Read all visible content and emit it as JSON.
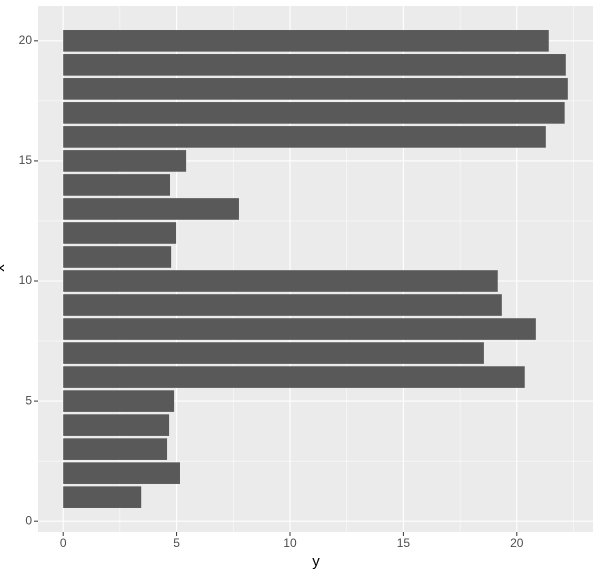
{
  "chart_data": {
    "type": "bar",
    "orientation": "horizontal",
    "x_label": "x",
    "y_label": "y",
    "x": [
      1,
      2,
      3,
      4,
      5,
      6,
      7,
      8,
      9,
      10,
      11,
      12,
      13,
      14,
      15,
      16,
      17,
      18,
      19,
      20
    ],
    "values": [
      3.44,
      5.15,
      4.58,
      4.67,
      4.89,
      20.35,
      18.55,
      20.84,
      19.34,
      19.16,
      4.76,
      4.98,
      7.75,
      4.71,
      5.42,
      21.28,
      22.11,
      22.25,
      22.16,
      21.41
    ],
    "color": "#595959",
    "xlim": [
      -0.45,
      21.45
    ],
    "xticks": [
      0,
      5,
      10,
      15,
      20
    ],
    "ylim": [
      -1.11,
      23.36
    ],
    "yticks": [
      0,
      5,
      10,
      15,
      20
    ],
    "grid": true
  }
}
